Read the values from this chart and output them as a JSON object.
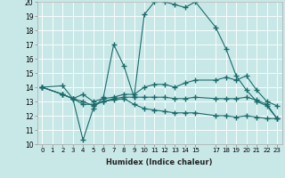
{
  "xlabel": "Humidex (Indice chaleur)",
  "bg_color": "#c8e8e8",
  "grid_color": "#b0d8d8",
  "line_color": "#1a6b6b",
  "marker": "+",
  "marker_size": 4,
  "xlim": [
    -0.5,
    23.5
  ],
  "ylim": [
    10,
    20
  ],
  "xticks": [
    0,
    1,
    2,
    3,
    4,
    5,
    6,
    7,
    8,
    9,
    10,
    11,
    12,
    13,
    14,
    15,
    17,
    18,
    19,
    20,
    21,
    22,
    23
  ],
  "yticks": [
    10,
    11,
    12,
    13,
    14,
    15,
    16,
    17,
    18,
    19,
    20
  ],
  "series": [
    {
      "x": [
        0,
        2,
        3,
        4,
        5,
        6,
        7,
        8,
        9,
        10,
        11,
        12,
        13,
        14,
        15,
        17,
        18,
        19,
        20,
        21,
        22,
        23
      ],
      "y": [
        14,
        14.1,
        13.2,
        10.3,
        12.5,
        13.3,
        17.0,
        15.5,
        13.3,
        19.1,
        20.0,
        20.0,
        19.8,
        19.6,
        20.0,
        18.2,
        16.7,
        14.8,
        13.8,
        13.0,
        12.7,
        11.8
      ]
    },
    {
      "x": [
        0,
        2,
        3,
        4,
        5,
        6,
        7,
        8,
        9,
        10,
        11,
        12,
        13,
        14,
        15,
        17,
        18,
        19,
        20,
        21,
        22,
        23
      ],
      "y": [
        14,
        13.5,
        13.2,
        13.5,
        13.0,
        13.2,
        13.3,
        13.5,
        13.5,
        14.0,
        14.2,
        14.2,
        14.0,
        14.3,
        14.5,
        14.5,
        14.7,
        14.5,
        14.8,
        13.8,
        13.0,
        12.7
      ]
    },
    {
      "x": [
        0,
        2,
        3,
        4,
        5,
        6,
        7,
        8,
        9,
        10,
        11,
        12,
        13,
        14,
        15,
        17,
        18,
        19,
        20,
        21,
        22,
        23
      ],
      "y": [
        14,
        13.5,
        13.2,
        12.8,
        12.8,
        13.0,
        13.1,
        13.2,
        12.8,
        12.5,
        12.4,
        12.3,
        12.2,
        12.2,
        12.2,
        12.0,
        12.0,
        11.9,
        12.0,
        11.9,
        11.8,
        11.8
      ]
    },
    {
      "x": [
        0,
        2,
        3,
        4,
        5,
        6,
        7,
        8,
        9,
        10,
        11,
        12,
        13,
        14,
        15,
        17,
        18,
        19,
        20,
        21,
        22,
        23
      ],
      "y": [
        14,
        13.5,
        13.2,
        13.0,
        12.7,
        13.0,
        13.2,
        13.3,
        13.3,
        13.3,
        13.3,
        13.3,
        13.2,
        13.2,
        13.3,
        13.2,
        13.2,
        13.2,
        13.3,
        13.1,
        12.8,
        11.8
      ]
    }
  ]
}
